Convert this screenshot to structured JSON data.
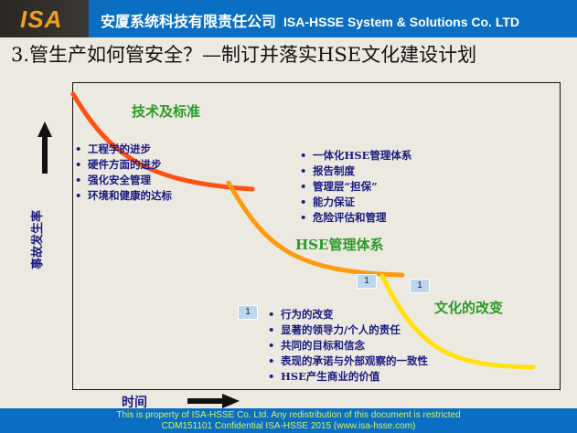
{
  "header": {
    "logo_text": "ISA",
    "company_cn": "安厦系统科技有限责任公司",
    "company_en": "ISA-HSSE  System & Solutions Co. LTD"
  },
  "title": "3.管生产如何管安全？—制订并落实HSE文化建设计划",
  "diagram": {
    "y_axis_label": "事故发生率",
    "x_axis_label": "时间",
    "stages": [
      {
        "label": "技术及标准",
        "color": "#ff5a10",
        "items": [
          "工程学的进步",
          "硬件方面的进步",
          "强化安全管理",
          "环境和健康的达标"
        ]
      },
      {
        "label": "HSE管理体系",
        "color": "#ff9a10",
        "items": [
          "一体化HSE管理体系",
          "报告制度",
          "管理层“担保”",
          "能力保证",
          "危险评估和管理"
        ]
      },
      {
        "label": "文化的改变",
        "color": "#ffe010",
        "items": [
          "行为的改变",
          "显著的领导力/个人的责任",
          "共同的目标和信念",
          "表现的承诺与外部观察的一致性",
          "HSE产生商业的价值"
        ]
      }
    ],
    "tags": [
      "1",
      "1",
      "1"
    ]
  },
  "footer": {
    "line1": "This is property of ISA-HSSE Co. Ltd. Any redistribution of this document is restricted",
    "line2": "CDM151101 Confidential   ISA-HSSE 2015  (www.isa-hsse.com)"
  }
}
